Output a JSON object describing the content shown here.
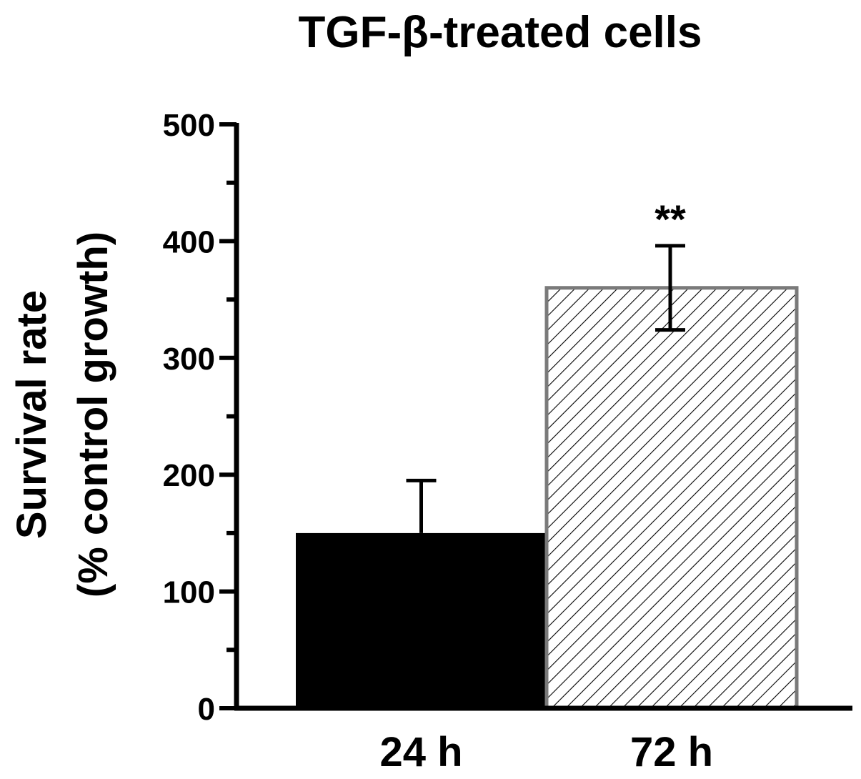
{
  "chart_data": {
    "type": "bar",
    "title": "TGF-β-treated cells",
    "ylabel_lines": [
      "Survival rate",
      "(%  control growth)"
    ],
    "xlabel": "",
    "categories": [
      "24 h",
      "72 h"
    ],
    "values": [
      150,
      360
    ],
    "errors": [
      45,
      36
    ],
    "annotations": [
      "",
      "**"
    ],
    "ylim": [
      0,
      500
    ],
    "yticks": [
      0,
      100,
      200,
      300,
      400,
      500
    ],
    "yticks_minor": [
      50,
      150,
      250,
      350,
      450
    ],
    "grid": false,
    "colors": {
      "bar_24h_fill": "#000000",
      "bar_72h_fill": "#ffffff",
      "bar_72h_hatch": "#000000",
      "bar_72h_border": "#7a7a7a",
      "axis": "#000000"
    }
  }
}
